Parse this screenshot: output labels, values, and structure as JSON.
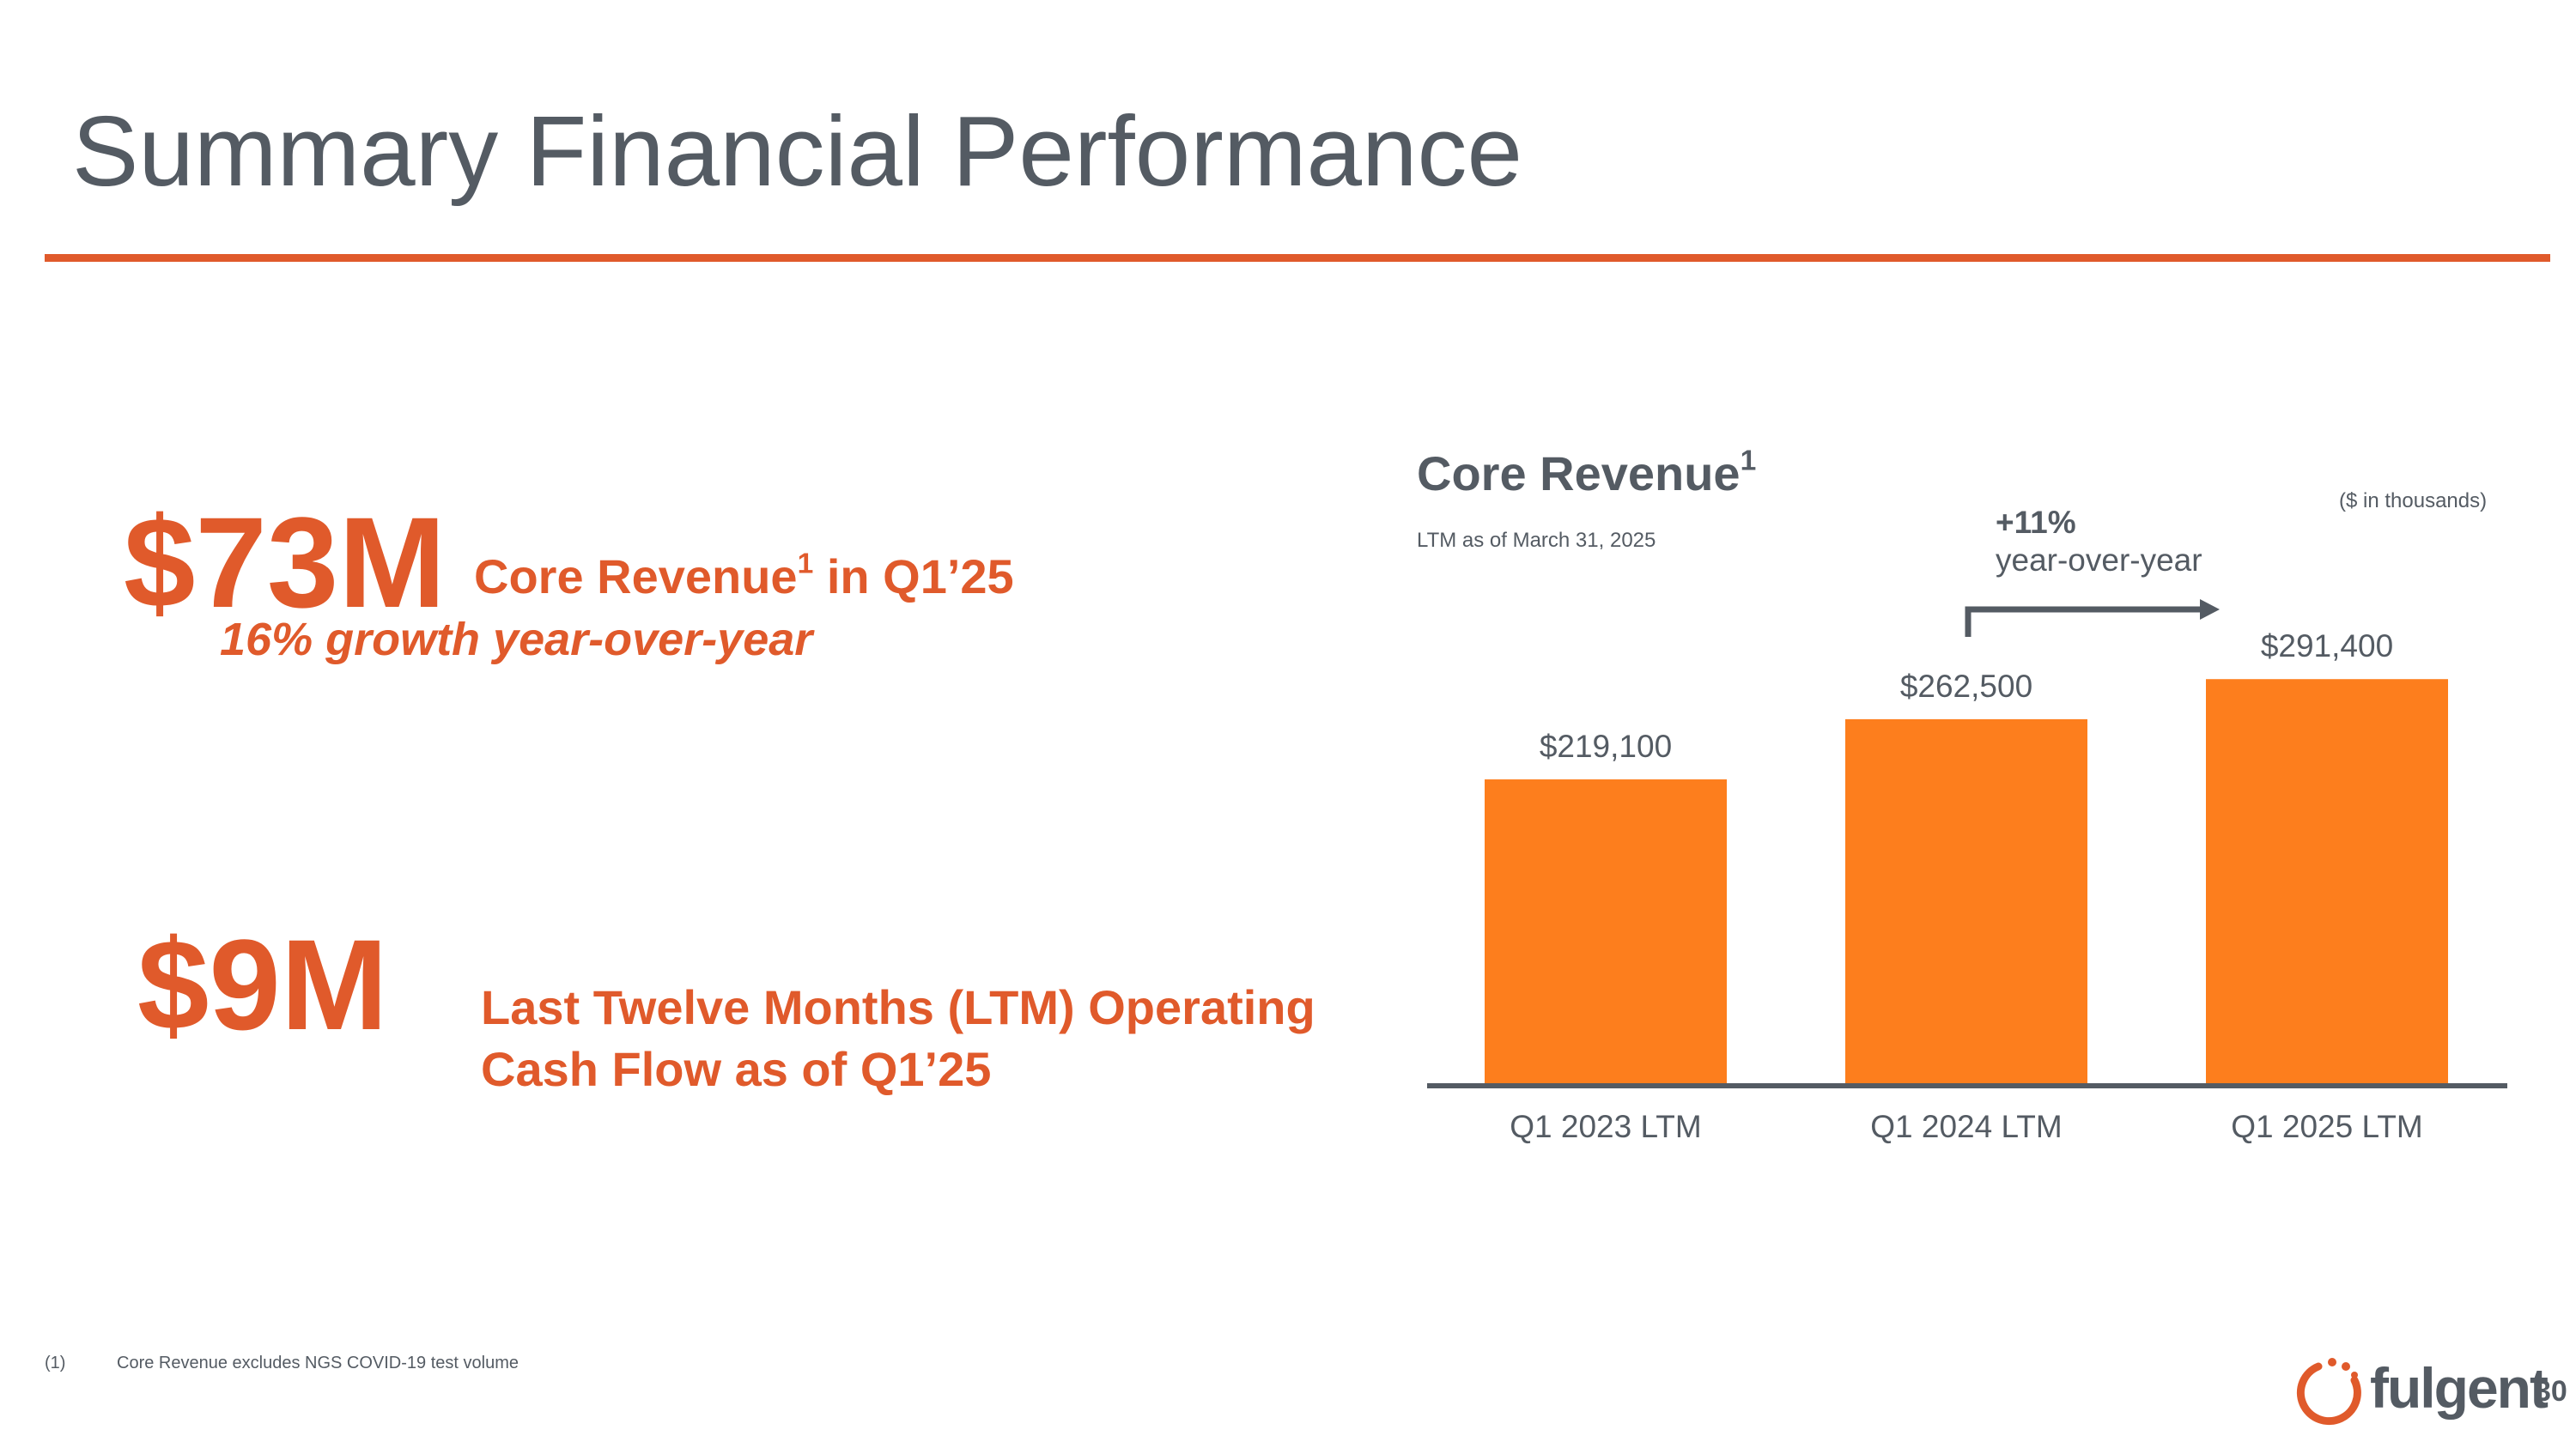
{
  "slide": {
    "title": "Summary Financial Performance",
    "page_number": "30",
    "accent_color": "#e05a2b"
  },
  "kpis": {
    "revenue": {
      "value": "$73M",
      "label_main": "Core Revenue",
      "label_sup": "1",
      "label_tail": " in Q1’25",
      "growth": "16% growth year-over-year"
    },
    "cash_flow": {
      "value": "$9M",
      "label_line1": "Last Twelve Months (LTM) Operating",
      "label_line2": "Cash Flow as of Q1’25"
    }
  },
  "chart_header": {
    "title": "Core Revenue",
    "title_sup": "1",
    "subtitle": "LTM as of March 31, 2025",
    "units": "($ in thousands)",
    "yoy_pct": "+11%",
    "yoy_text": "year-over-year"
  },
  "chart_data": {
    "type": "bar",
    "title": "Core Revenue",
    "categories": [
      "Q1 2023 LTM",
      "Q1 2024 LTM",
      "Q1 2025 LTM"
    ],
    "values": [
      219100,
      262500,
      291400
    ],
    "value_labels": [
      "$219,100",
      "$262,500",
      "$291,400"
    ],
    "ylim": [
      0,
      385000
    ],
    "bar_color": "#fd7e1d",
    "axis_color": "#545b63",
    "xlabel": "",
    "ylabel": "",
    "grid": false
  },
  "footnote": {
    "number": "(1)",
    "text": "Core Revenue excludes NGS COVID-19 test volume"
  },
  "logo": {
    "name": "fulgent",
    "icon": "fulgent-logo-icon"
  }
}
